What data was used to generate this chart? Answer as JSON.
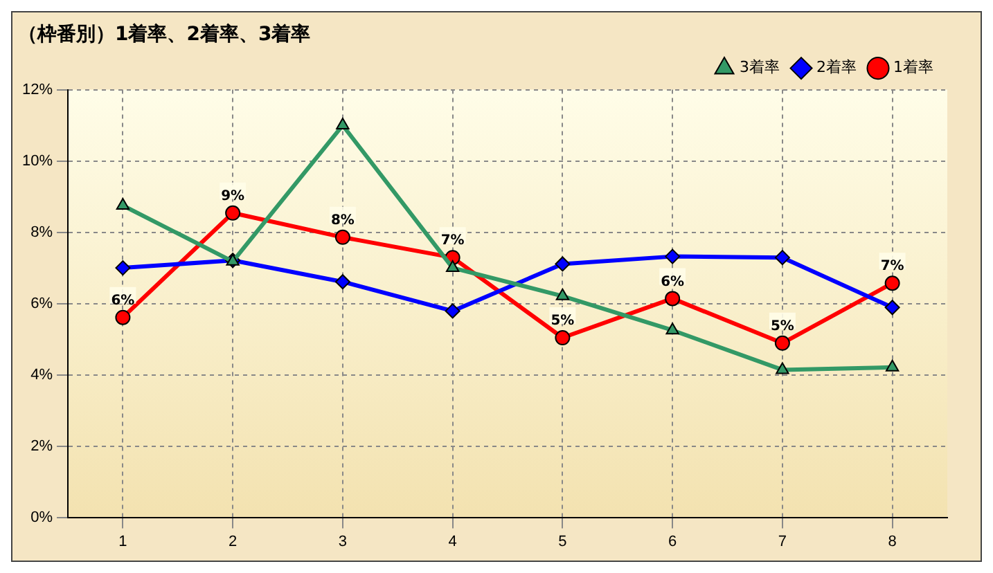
{
  "chart_data": {
    "type": "line",
    "title": "（枠番別）1着率、2着率、3着率",
    "categories": [
      "1",
      "2",
      "3",
      "4",
      "5",
      "6",
      "7",
      "8"
    ],
    "series": [
      {
        "name": "3着率",
        "color": "#339966",
        "marker": "triangle",
        "values": [
          8.75,
          7.18,
          11.0,
          7.0,
          6.21,
          5.25,
          4.14,
          4.21
        ]
      },
      {
        "name": "2着率",
        "color": "#0000ff",
        "marker": "diamond",
        "values": [
          7.0,
          7.21,
          6.61,
          5.79,
          7.11,
          7.32,
          7.29,
          5.89
        ]
      },
      {
        "name": "1着率",
        "color": "#ff0000",
        "marker": "circle",
        "values": [
          5.61,
          8.54,
          7.86,
          7.29,
          5.04,
          6.14,
          4.89,
          6.57
        ],
        "value_labels": [
          "6%",
          "9%",
          "8%",
          "7%",
          "5%",
          "6%",
          "5%",
          "7%"
        ]
      }
    ],
    "ylim": [
      0,
      12
    ],
    "yticks": [
      {
        "value": 0,
        "label": "0%"
      },
      {
        "value": 2,
        "label": "2%"
      },
      {
        "value": 4,
        "label": "4%"
      },
      {
        "value": 6,
        "label": "6%"
      },
      {
        "value": 8,
        "label": "8%"
      },
      {
        "value": 10,
        "label": "10%"
      },
      {
        "value": 12,
        "label": "12%"
      }
    ],
    "grid": true,
    "legend": "top right",
    "line_style": "solid"
  }
}
